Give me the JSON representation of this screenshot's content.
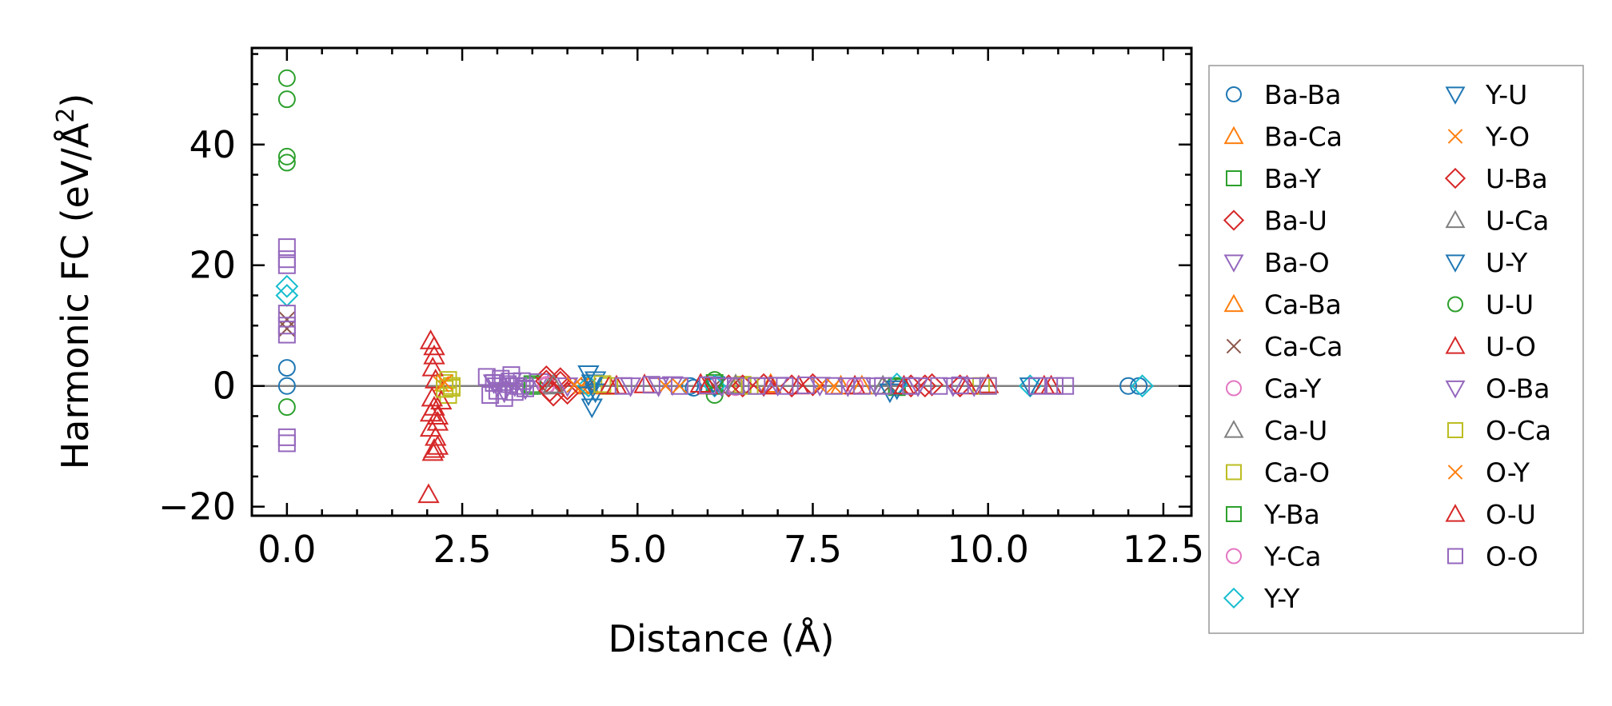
{
  "chart_data": {
    "type": "scatter",
    "xlabel": "Distance (Å)",
    "ylabel_main": "Harmonic FC (eV/Å",
    "ylabel_sup": "2",
    "ylabel_close": ")",
    "xlim": [
      -0.5,
      12.9
    ],
    "ylim": [
      -21.5,
      56
    ],
    "xticks": [
      0.0,
      2.5,
      5.0,
      7.5,
      10.0,
      12.5
    ],
    "xtick_labels": [
      "0.0",
      "2.5",
      "5.0",
      "7.5",
      "10.0",
      "12.5"
    ],
    "yticks": [
      -20,
      0,
      20,
      40
    ],
    "ytick_labels": [
      "−20",
      "0",
      "20",
      "40"
    ],
    "zero_line": true,
    "grid": false,
    "legend_placement": "outside right, two columns",
    "series": [
      {
        "name": "Ba-Ba",
        "marker": "circle",
        "color": "#1f77b4",
        "points": [
          [
            0,
            0
          ],
          [
            0,
            3
          ],
          [
            5.75,
            0
          ],
          [
            5.8,
            -0.3
          ],
          [
            12.0,
            0
          ],
          [
            12.15,
            0
          ]
        ]
      },
      {
        "name": "Ba-Ca",
        "marker": "triangle-up",
        "color": "#ff7f0e",
        "points": [
          [
            4.3,
            0
          ],
          [
            6.9,
            0.3
          ],
          [
            7.9,
            0
          ]
        ]
      },
      {
        "name": "Ba-Y",
        "marker": "square",
        "color": "#2ca02c",
        "points": [
          [
            3.5,
            0
          ],
          [
            6.1,
            0.5
          ],
          [
            8.7,
            0
          ]
        ]
      },
      {
        "name": "Ba-U",
        "marker": "diamond",
        "color": "#d62728",
        "points": [
          [
            3.7,
            1.5
          ],
          [
            3.8,
            -1.5
          ],
          [
            3.9,
            0.6
          ],
          [
            4.0,
            -0.5
          ],
          [
            6.3,
            0
          ],
          [
            7.5,
            0.2
          ],
          [
            9.1,
            0
          ]
        ]
      },
      {
        "name": "Ba-O",
        "marker": "triangle-down",
        "color": "#9467bd",
        "points": [
          [
            2.95,
            0.5
          ],
          [
            3.1,
            -1
          ],
          [
            3.25,
            0
          ],
          [
            3.6,
            0.7
          ],
          [
            4.9,
            0
          ],
          [
            5.5,
            0.2
          ],
          [
            6.8,
            0
          ],
          [
            7.6,
            0.1
          ],
          [
            8.4,
            0
          ],
          [
            9.5,
            0
          ]
        ]
      },
      {
        "name": "Ca-Ba",
        "marker": "triangle-up",
        "color": "#ff7f0e",
        "points": [
          [
            4.3,
            0.2
          ],
          [
            6.9,
            0
          ],
          [
            8.2,
            0
          ]
        ]
      },
      {
        "name": "Ca-Ca",
        "marker": "x",
        "color": "#8c564b",
        "points": [
          [
            0,
            11
          ],
          [
            0,
            9.5
          ],
          [
            4.3,
            0
          ],
          [
            6.1,
            0
          ],
          [
            8.6,
            0
          ]
        ]
      },
      {
        "name": "Ca-Y",
        "marker": "circle",
        "color": "#e377c2",
        "points": [
          [
            3.7,
            0
          ],
          [
            6.4,
            0
          ],
          [
            8.1,
            0
          ]
        ]
      },
      {
        "name": "Ca-U",
        "marker": "triangle-up",
        "color": "#7f7f7f",
        "points": [
          [
            3.75,
            0
          ],
          [
            6.4,
            0.2
          ]
        ]
      },
      {
        "name": "Ca-O",
        "marker": "square",
        "color": "#bcbd22",
        "points": [
          [
            2.25,
            0.5
          ],
          [
            2.3,
            -1.5
          ],
          [
            2.35,
            0
          ],
          [
            4.6,
            0
          ],
          [
            6.5,
            0.2
          ],
          [
            9.9,
            0
          ]
        ]
      },
      {
        "name": "Y-Ba",
        "marker": "square",
        "color": "#2ca02c",
        "points": [
          [
            3.5,
            0.3
          ],
          [
            6.1,
            0
          ],
          [
            8.7,
            -0.2
          ]
        ]
      },
      {
        "name": "Y-Ca",
        "marker": "circle",
        "color": "#e377c2",
        "points": [
          [
            3.7,
            0.2
          ],
          [
            6.4,
            -0.2
          ]
        ]
      },
      {
        "name": "Y-Y",
        "marker": "diamond",
        "color": "#17becf",
        "points": [
          [
            0,
            16.5
          ],
          [
            0,
            15
          ],
          [
            4.3,
            0
          ],
          [
            6.1,
            0
          ],
          [
            8.7,
            0.3
          ],
          [
            10.6,
            0
          ],
          [
            12.2,
            0
          ]
        ]
      },
      {
        "name": "Y-U",
        "marker": "triangle-down",
        "color": "#1f77b4",
        "points": [
          [
            4.3,
            2
          ],
          [
            4.35,
            -3.5
          ],
          [
            4.4,
            1
          ],
          [
            4.4,
            -1
          ],
          [
            6.1,
            0
          ],
          [
            8.6,
            -1
          ],
          [
            10.6,
            0
          ]
        ]
      },
      {
        "name": "Y-O",
        "marker": "x",
        "color": "#ff7f0e",
        "points": [
          [
            2.2,
            0.3
          ],
          [
            4.2,
            0
          ],
          [
            5.6,
            0
          ],
          [
            7.8,
            0
          ]
        ]
      },
      {
        "name": "U-Ba",
        "marker": "diamond",
        "color": "#d62728",
        "points": [
          [
            3.7,
            0.8
          ],
          [
            3.75,
            -0.8
          ],
          [
            3.9,
            1.2
          ],
          [
            4.0,
            -1.2
          ],
          [
            6.5,
            0
          ],
          [
            6.8,
            0.2
          ],
          [
            7.2,
            0
          ],
          [
            8.9,
            0
          ],
          [
            9.2,
            0.2
          ],
          [
            9.6,
            0
          ]
        ]
      },
      {
        "name": "U-Ca",
        "marker": "triangle-up",
        "color": "#7f7f7f",
        "points": [
          [
            3.8,
            0.2
          ],
          [
            6.4,
            0
          ],
          [
            8.5,
            0
          ]
        ]
      },
      {
        "name": "U-Y",
        "marker": "triangle-down",
        "color": "#1f77b4",
        "points": [
          [
            4.3,
            -1.5
          ],
          [
            4.35,
            0.5
          ],
          [
            6.1,
            0.2
          ],
          [
            8.7,
            -0.5
          ]
        ]
      },
      {
        "name": "U-U",
        "marker": "circle",
        "color": "#2ca02c",
        "points": [
          [
            0,
            51
          ],
          [
            0,
            47.5
          ],
          [
            0,
            38
          ],
          [
            0,
            37
          ],
          [
            0,
            -3.5
          ],
          [
            6.1,
            -1.5
          ],
          [
            6.1,
            1
          ]
        ]
      },
      {
        "name": "U-O",
        "marker": "triangle-up",
        "color": "#d62728",
        "points": [
          [
            2.05,
            7.5
          ],
          [
            2.1,
            5
          ],
          [
            2.08,
            3
          ],
          [
            2.12,
            1
          ],
          [
            2.07,
            -2
          ],
          [
            2.1,
            -3.5
          ],
          [
            2.15,
            -5
          ],
          [
            2.05,
            -7
          ],
          [
            2.12,
            -8.5
          ],
          [
            2.08,
            -11
          ],
          [
            2.15,
            -10
          ],
          [
            2.2,
            -2.5
          ],
          [
            2.02,
            -18
          ],
          [
            4.6,
            0
          ],
          [
            5.1,
            0.2
          ],
          [
            6.0,
            0
          ],
          [
            6.9,
            0
          ],
          [
            8.1,
            0
          ],
          [
            9.7,
            0
          ],
          [
            10.0,
            0.2
          ],
          [
            10.8,
            0
          ]
        ]
      },
      {
        "name": "O-Ba",
        "marker": "triangle-down",
        "color": "#9467bd",
        "points": [
          [
            3.0,
            0
          ],
          [
            3.2,
            0.8
          ],
          [
            3.4,
            -0.5
          ],
          [
            4.0,
            0
          ],
          [
            5.3,
            0
          ],
          [
            6.2,
            0
          ],
          [
            7.0,
            0.1
          ],
          [
            8.0,
            0
          ],
          [
            9.0,
            0
          ],
          [
            9.8,
            0
          ]
        ]
      },
      {
        "name": "O-Ca",
        "marker": "square",
        "color": "#bcbd22",
        "points": [
          [
            2.25,
            -0.5
          ],
          [
            2.3,
            1
          ],
          [
            2.35,
            -0.3
          ],
          [
            4.5,
            0.3
          ],
          [
            6.6,
            0
          ],
          [
            10.0,
            0
          ]
        ]
      },
      {
        "name": "O-Y",
        "marker": "x",
        "color": "#ff7f0e",
        "points": [
          [
            2.25,
            0.6
          ],
          [
            4.1,
            0.2
          ],
          [
            5.4,
            0
          ],
          [
            7.6,
            0
          ]
        ]
      },
      {
        "name": "O-U",
        "marker": "triangle-up",
        "color": "#d62728",
        "points": [
          [
            2.1,
            6.5
          ],
          [
            2.05,
            -4.5
          ],
          [
            2.1,
            -10.5
          ],
          [
            2.15,
            -6
          ],
          [
            4.7,
            0
          ],
          [
            5.9,
            0.3
          ],
          [
            7.3,
            0
          ],
          [
            8.8,
            0
          ],
          [
            10.9,
            0
          ]
        ]
      },
      {
        "name": "O-O",
        "marker": "square",
        "color": "#9467bd",
        "points": [
          [
            0,
            23
          ],
          [
            0,
            21
          ],
          [
            0,
            20
          ],
          [
            0,
            12
          ],
          [
            0,
            10
          ],
          [
            0,
            8.5
          ],
          [
            0,
            -8.5
          ],
          [
            0,
            -9.5
          ],
          [
            2.85,
            1.5
          ],
          [
            2.9,
            -1.5
          ],
          [
            2.95,
            0.5
          ],
          [
            3.0,
            -0.8
          ],
          [
            3.05,
            1.2
          ],
          [
            3.1,
            -2
          ],
          [
            3.15,
            0.3
          ],
          [
            3.2,
            1.8
          ],
          [
            3.25,
            -1
          ],
          [
            3.3,
            0
          ],
          [
            3.35,
            0.8
          ],
          [
            3.4,
            -0.4
          ],
          [
            4.8,
            0
          ],
          [
            5.2,
            0.2
          ],
          [
            5.6,
            0
          ],
          [
            6.0,
            0.1
          ],
          [
            6.4,
            0
          ],
          [
            6.7,
            0
          ],
          [
            7.1,
            0
          ],
          [
            7.4,
            0.1
          ],
          [
            7.8,
            0
          ],
          [
            8.2,
            0
          ],
          [
            8.5,
            0
          ],
          [
            8.9,
            0
          ],
          [
            9.3,
            0
          ],
          [
            9.6,
            0.1
          ],
          [
            10.0,
            0
          ],
          [
            10.7,
            0
          ],
          [
            10.95,
            0
          ],
          [
            11.1,
            0
          ]
        ]
      }
    ]
  }
}
